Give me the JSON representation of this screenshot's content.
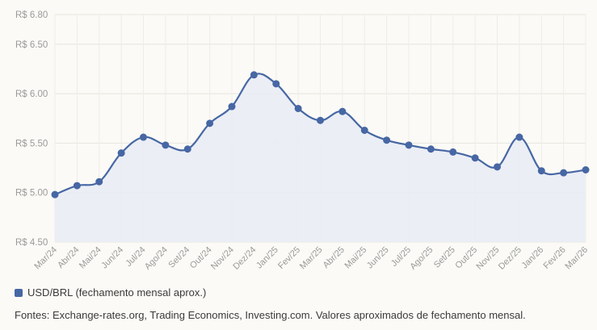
{
  "chart_data": {
    "type": "area",
    "title": "",
    "xlabel": "",
    "ylabel": "",
    "currency_prefix": "R$",
    "categories": [
      "Mar/24",
      "Abr/24",
      "Mai/24",
      "Jun/24",
      "Jul/24",
      "Ago/24",
      "Set/24",
      "Out/24",
      "Nov/24",
      "Dez/24",
      "Jan/25",
      "Fev/25",
      "Mar/25",
      "Abr/25",
      "Mai/25",
      "Jun/25",
      "Jul/25",
      "Ago/25",
      "Set/25",
      "Out/25",
      "Nov/25",
      "Dez/25",
      "Jan/26",
      "Fev/26",
      "Mar/26"
    ],
    "series": [
      {
        "name": "USD/BRL (fechamento mensal aprox.)",
        "color": "#4767a4",
        "fill_color": "#e9ecf5",
        "values": [
          4.98,
          5.07,
          5.11,
          5.4,
          5.56,
          5.48,
          5.44,
          5.7,
          5.87,
          6.19,
          6.1,
          5.85,
          5.73,
          5.82,
          5.63,
          5.53,
          5.48,
          5.44,
          5.41,
          5.35,
          5.26,
          5.56,
          5.22,
          5.2,
          5.23
        ]
      }
    ],
    "ylim": [
      4.5,
      6.8
    ],
    "yticks": [
      4.5,
      5.0,
      5.5,
      6.0,
      6.5,
      6.8
    ],
    "ytick_labels": [
      "R$ 4.50",
      "R$ 5.00",
      "R$ 5.50",
      "R$ 6.00",
      "R$ 6.50",
      "R$ 6.80"
    ],
    "grid": true,
    "legend_position": "bottom-left"
  },
  "legend": {
    "label": "USD/BRL (fechamento mensal aprox.)",
    "color": "#4767a4"
  },
  "footer": {
    "sources": "Fontes: Exchange-rates.org, Trading Economics, Investing.com. Valores aproximados de fechamento mensal."
  }
}
